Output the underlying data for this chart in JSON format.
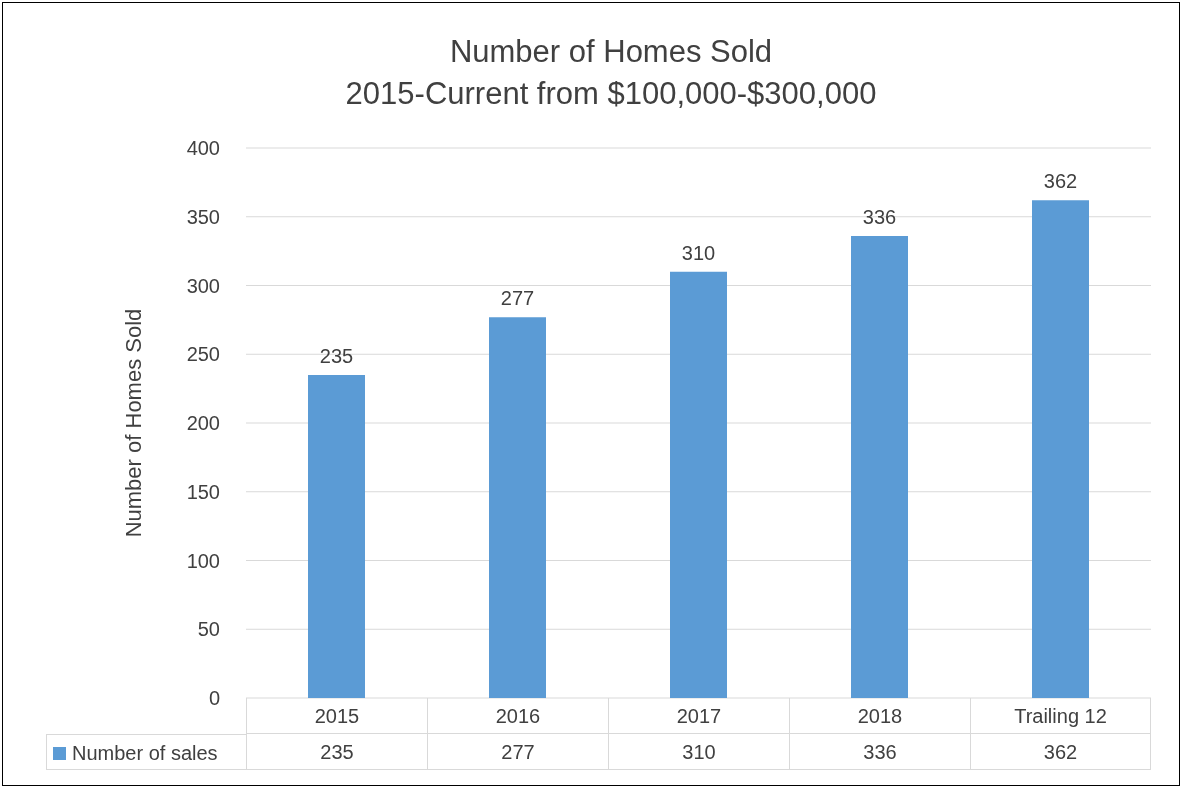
{
  "chart_data": {
    "type": "bar",
    "title": "Number of Homes Sold",
    "subtitle": "2015-Current from $100,000-$300,000",
    "ylabel": "Number of Homes Sold",
    "categories": [
      "2015",
      "2016",
      "2017",
      "2018",
      "Trailing 12"
    ],
    "series": [
      {
        "name": "Number of sales",
        "color": "#5b9bd5",
        "values": [
          235,
          277,
          310,
          336,
          362
        ],
        "value_labels": [
          "235",
          "277",
          "310",
          "336",
          "362"
        ]
      }
    ],
    "ylim": [
      0,
      400
    ],
    "yticks": [
      0,
      50,
      100,
      150,
      200,
      250,
      300,
      350,
      400
    ],
    "grid": "y",
    "legend": "bottom",
    "annotations": [
      {
        "text": "235",
        "x": "2015",
        "y": 235
      },
      {
        "text": "277",
        "x": "2016",
        "y": 277
      },
      {
        "text": "310",
        "x": "2017",
        "y": 310
      },
      {
        "text": "336",
        "x": "2018",
        "y": 336
      },
      {
        "text": "362",
        "x": "Trailing 12",
        "y": 362
      }
    ]
  }
}
